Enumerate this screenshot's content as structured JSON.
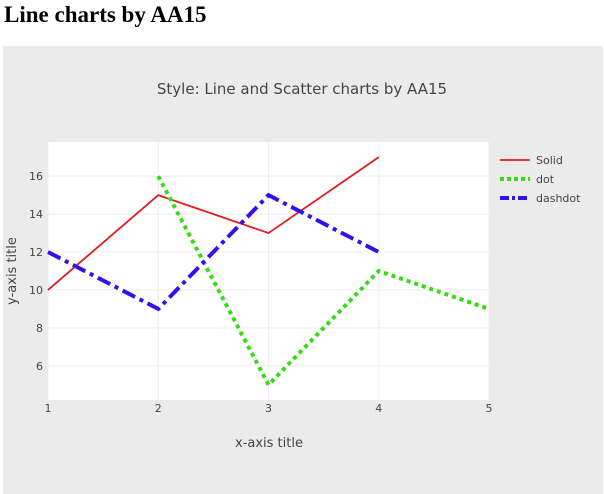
{
  "page": {
    "heading": "Line charts by AA15"
  },
  "chart_data": {
    "type": "line",
    "title": "Style: Line and Scatter charts by AA15",
    "xlabel": "x-axis title",
    "ylabel": "y-axis title",
    "xlim": [
      1,
      5
    ],
    "ylim": [
      4.2,
      17.8
    ],
    "x_ticks": [
      1,
      2,
      3,
      4,
      5
    ],
    "y_ticks": [
      6,
      8,
      10,
      12,
      14,
      16
    ],
    "grid": true,
    "legend_position": "right",
    "series": [
      {
        "name": "Solid",
        "x": [
          1,
          2,
          3,
          4
        ],
        "y": [
          10,
          15,
          13,
          17
        ],
        "color": "#e31a1c",
        "dash": "solid"
      },
      {
        "name": "dot",
        "x": [
          2,
          3,
          4,
          5
        ],
        "y": [
          16,
          5,
          11,
          9
        ],
        "color": "#33dd11",
        "dash": "dot"
      },
      {
        "name": "dashdot",
        "x": [
          1,
          2,
          3,
          4
        ],
        "y": [
          12,
          9,
          15,
          12
        ],
        "color": "#3311ee",
        "dash": "dashdot"
      }
    ]
  }
}
